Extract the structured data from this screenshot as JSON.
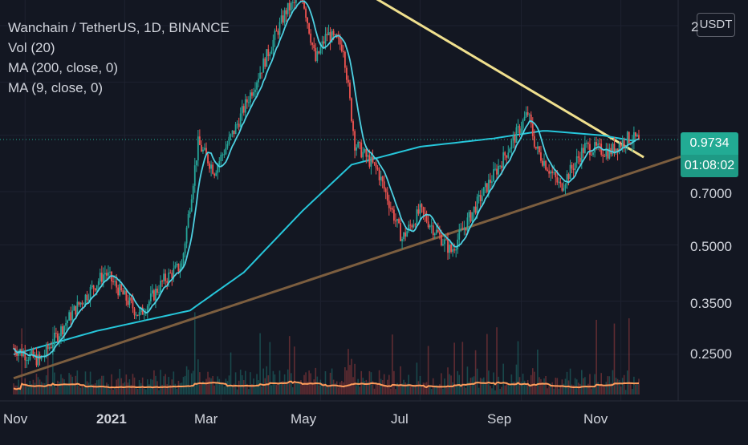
{
  "legend": {
    "symbol": "Wanchain / TetherUS, 1D, BINANCE",
    "vol": "Vol (20)",
    "ma200": "MA (200, close, 0)",
    "ma9": "MA (9, close, 0)"
  },
  "currency": "USDT",
  "last_price": "0.9734",
  "countdown": "01:08:02",
  "colors": {
    "background": "#131722",
    "up": "#26a69a",
    "down": "#ef5350",
    "ma9": "#4dd0e1",
    "ma200": "#26c6da",
    "upper_trendline": "#f0e08e",
    "lower_trendline": "#7c5e3f",
    "volume_ma": "#ff9d5c",
    "price_tag": "#22ab94"
  },
  "chart_data": {
    "type": "candlestick",
    "title": "Wanchain / TetherUS, 1D, BINANCE",
    "y_scale": "log",
    "y_ticks": [
      "2",
      "0.7000",
      "0.5000",
      "0.3500",
      "0.2500"
    ],
    "x_ticks": [
      "Nov",
      "2021",
      "Mar",
      "May",
      "Jul",
      "Sep",
      "Nov"
    ],
    "last_price": 0.9734,
    "price_path": [
      {
        "date": "2020-10-25",
        "close": 0.26
      },
      {
        "date": "2020-11-10",
        "close": 0.24
      },
      {
        "date": "2020-12-01",
        "close": 0.33
      },
      {
        "date": "2020-12-20",
        "close": 0.42
      },
      {
        "date": "2021-01-10",
        "close": 0.32
      },
      {
        "date": "2021-01-25",
        "close": 0.4
      },
      {
        "date": "2021-02-05",
        "close": 0.44
      },
      {
        "date": "2021-02-15",
        "close": 0.95
      },
      {
        "date": "2021-02-25",
        "close": 0.8
      },
      {
        "date": "2021-03-10",
        "close": 1.05
      },
      {
        "date": "2021-03-25",
        "close": 1.5
      },
      {
        "date": "2021-04-10",
        "close": 2.2
      },
      {
        "date": "2021-04-20",
        "close": 2.4
      },
      {
        "date": "2021-04-28",
        "close": 1.6
      },
      {
        "date": "2021-05-05",
        "close": 1.9
      },
      {
        "date": "2021-05-15",
        "close": 1.75
      },
      {
        "date": "2021-05-22",
        "close": 0.95
      },
      {
        "date": "2021-06-05",
        "close": 0.8
      },
      {
        "date": "2021-06-20",
        "close": 0.52
      },
      {
        "date": "2021-07-01",
        "close": 0.62
      },
      {
        "date": "2021-07-20",
        "close": 0.48
      },
      {
        "date": "2021-08-05",
        "close": 0.65
      },
      {
        "date": "2021-08-20",
        "close": 0.85
      },
      {
        "date": "2021-09-05",
        "close": 1.15
      },
      {
        "date": "2021-09-10",
        "close": 0.92
      },
      {
        "date": "2021-09-25",
        "close": 0.72
      },
      {
        "date": "2021-10-10",
        "close": 0.93
      },
      {
        "date": "2021-10-25",
        "close": 0.9
      },
      {
        "date": "2021-11-05",
        "close": 0.98
      },
      {
        "date": "2021-11-12",
        "close": 0.9734
      }
    ],
    "ma200_path": [
      {
        "date": "2020-10-25",
        "value": 0.25
      },
      {
        "date": "2020-12-15",
        "value": 0.29
      },
      {
        "date": "2021-02-10",
        "value": 0.33
      },
      {
        "date": "2021-03-15",
        "value": 0.42
      },
      {
        "date": "2021-04-20",
        "value": 0.62
      },
      {
        "date": "2021-05-20",
        "value": 0.83
      },
      {
        "date": "2021-07-01",
        "value": 0.93
      },
      {
        "date": "2021-08-15",
        "value": 0.98
      },
      {
        "date": "2021-09-15",
        "value": 1.03
      },
      {
        "date": "2021-10-20",
        "value": 1.0
      },
      {
        "date": "2021-11-12",
        "value": 0.96
      }
    ],
    "upper_trendline": [
      {
        "date": "2021-05-08",
        "value": 2.8
      },
      {
        "date": "2021-11-15",
        "value": 0.87
      }
    ],
    "lower_trendline": [
      {
        "date": "2020-10-25",
        "value": 0.215
      },
      {
        "date": "2021-12-10",
        "value": 0.88
      }
    ]
  }
}
